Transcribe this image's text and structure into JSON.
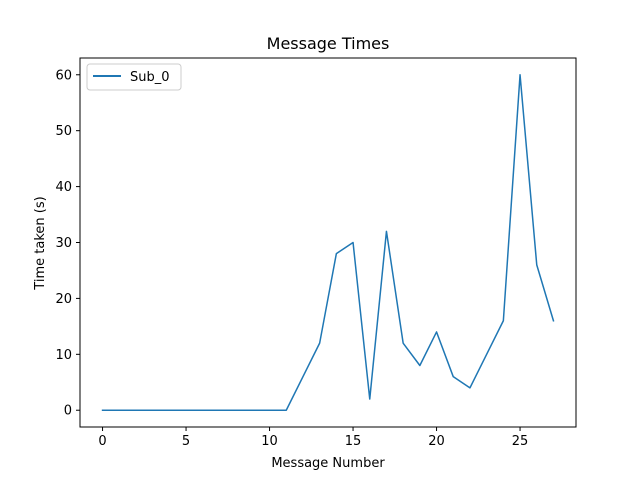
{
  "chart_data": {
    "type": "line",
    "title": "Message Times",
    "xlabel": "Message Number",
    "ylabel": "Time taken (s)",
    "xlim": [
      -1.35,
      28.35
    ],
    "ylim": [
      -3.0,
      63.0
    ],
    "xticks": [
      0,
      5,
      10,
      15,
      20,
      25
    ],
    "yticks": [
      0,
      10,
      20,
      30,
      40,
      50,
      60
    ],
    "grid": false,
    "legend_position": "top-left",
    "series": [
      {
        "name": "Sub_0",
        "color": "#1f77b4",
        "x": [
          0,
          1,
          2,
          3,
          4,
          5,
          6,
          7,
          8,
          9,
          10,
          11,
          12,
          13,
          14,
          15,
          16,
          17,
          18,
          19,
          20,
          21,
          22,
          23,
          24,
          25,
          26,
          27
        ],
        "y": [
          0,
          0,
          0,
          0,
          0,
          0,
          0,
          0,
          0,
          0,
          0,
          0,
          6,
          12,
          28,
          30,
          2,
          32,
          12,
          8,
          14,
          6,
          4,
          10,
          16,
          60,
          26,
          16
        ]
      }
    ]
  }
}
